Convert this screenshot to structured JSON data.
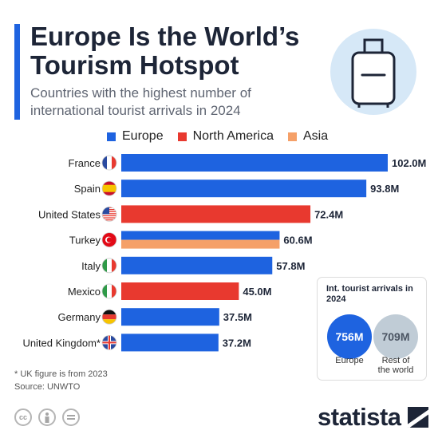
{
  "header": {
    "title_line1": "Europe Is the World’s",
    "title_line2": "Tourism Hotspot",
    "subtitle_line1": "Countries with the highest number of",
    "subtitle_line2": "international tourist arrivals in 2024",
    "illustration_icon": "suitcase-icon"
  },
  "legend": [
    {
      "label": "Europe",
      "color": "#1e63e0"
    },
    {
      "label": "North America",
      "color": "#e8392f"
    },
    {
      "label": "Asia",
      "color": "#f5a068"
    }
  ],
  "chart_data": {
    "type": "bar",
    "orientation": "horizontal",
    "unit": "M",
    "categories": [
      "France",
      "Spain",
      "United States",
      "Turkey",
      "Italy",
      "Mexico",
      "Germany",
      "United Kingdom*"
    ],
    "values": [
      102.0,
      93.8,
      72.4,
      60.6,
      57.8,
      45.0,
      37.5,
      37.2
    ],
    "value_labels": [
      "102.0M",
      "93.8M",
      "72.4M",
      "60.6M",
      "57.8M",
      "45.0M",
      "37.5M",
      "37.2M"
    ],
    "regions": [
      [
        "Europe"
      ],
      [
        "Europe"
      ],
      [
        "North America"
      ],
      [
        "Europe",
        "Asia"
      ],
      [
        "Europe"
      ],
      [
        "North America"
      ],
      [
        "Europe"
      ],
      [
        "Europe"
      ]
    ],
    "flag_icons": [
      "france-flag-icon",
      "spain-flag-icon",
      "us-flag-icon",
      "turkey-flag-icon",
      "italy-flag-icon",
      "mexico-flag-icon",
      "germany-flag-icon",
      "uk-flag-icon"
    ],
    "legend_position": "top",
    "grid": false
  },
  "info_box": {
    "title": "Int. tourist arrivals in 2024",
    "europe_value": "756M",
    "europe_label": "Europe",
    "rest_value": "709M",
    "rest_label_line1": "Rest of",
    "rest_label_line2": "the world"
  },
  "footer": {
    "note": "* UK figure is from 2023",
    "source": "Source: UNWTO",
    "license_icons": [
      "creative-commons-icon",
      "attribution-icon",
      "no-derivatives-icon"
    ],
    "brand": "statista"
  }
}
